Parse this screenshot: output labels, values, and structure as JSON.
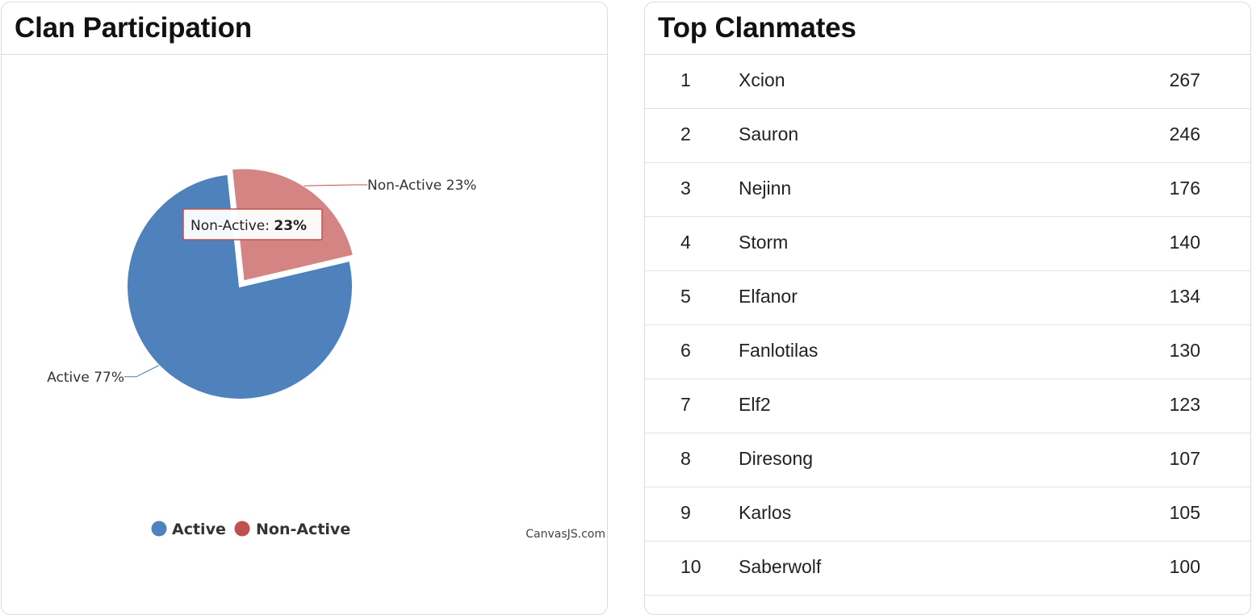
{
  "participation": {
    "title": "Clan Participation",
    "credit": "CanvasJS.com",
    "tooltip": {
      "label": "Non-Active:",
      "value": "23%"
    },
    "colors": {
      "active": "#4f81bc",
      "non_active": "#d48483",
      "non_active_legend": "#c0504e"
    }
  },
  "chart_data": {
    "type": "pie",
    "categories": [
      "Active",
      "Non-Active"
    ],
    "values": [
      77,
      23
    ],
    "slice_labels": [
      "Active 77%",
      "Non-Active 23%"
    ],
    "legend": [
      "Active",
      "Non-Active"
    ],
    "legend_position": "bottom",
    "exploded": "Non-Active"
  },
  "clanmates": {
    "title": "Top Clanmates",
    "rows": [
      {
        "rank": "1",
        "name": "Xcion",
        "score": "267"
      },
      {
        "rank": "2",
        "name": "Sauron",
        "score": "246"
      },
      {
        "rank": "3",
        "name": "Nejinn",
        "score": "176"
      },
      {
        "rank": "4",
        "name": "Storm",
        "score": "140"
      },
      {
        "rank": "5",
        "name": "Elfanor",
        "score": "134"
      },
      {
        "rank": "6",
        "name": "Fanlotilas",
        "score": "130"
      },
      {
        "rank": "7",
        "name": "Elf2",
        "score": "123"
      },
      {
        "rank": "8",
        "name": "Diresong",
        "score": "107"
      },
      {
        "rank": "9",
        "name": "Karlos",
        "score": "105"
      },
      {
        "rank": "10",
        "name": "Saberwolf",
        "score": "100"
      }
    ]
  }
}
